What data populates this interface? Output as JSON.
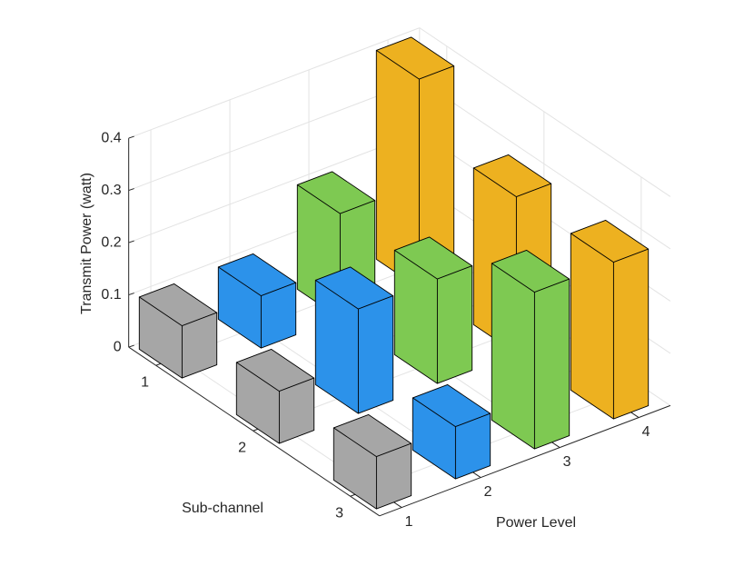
{
  "chart_data": {
    "type": "bar3d",
    "x_label": "Sub-channel",
    "y_label": "Power Level",
    "z_label": "Transmit Power (watt)",
    "categories": [
      "1",
      "2",
      "3"
    ],
    "series": [
      {
        "name": "1",
        "color": "#a6a6a6",
        "values": [
          0.1,
          0.1,
          0.1
        ]
      },
      {
        "name": "2",
        "color": "#2c92ea",
        "values": [
          0.1,
          0.2,
          0.1
        ]
      },
      {
        "name": "3",
        "color": "#7ec952",
        "values": [
          0.2,
          0.2,
          0.3
        ]
      },
      {
        "name": "4",
        "color": "#edb120",
        "values": [
          0.4,
          0.3,
          0.3
        ]
      }
    ],
    "zlim": [
      0,
      0.4
    ],
    "zticks": [
      0,
      0.1,
      0.2,
      0.3,
      0.4
    ],
    "grid": true
  }
}
